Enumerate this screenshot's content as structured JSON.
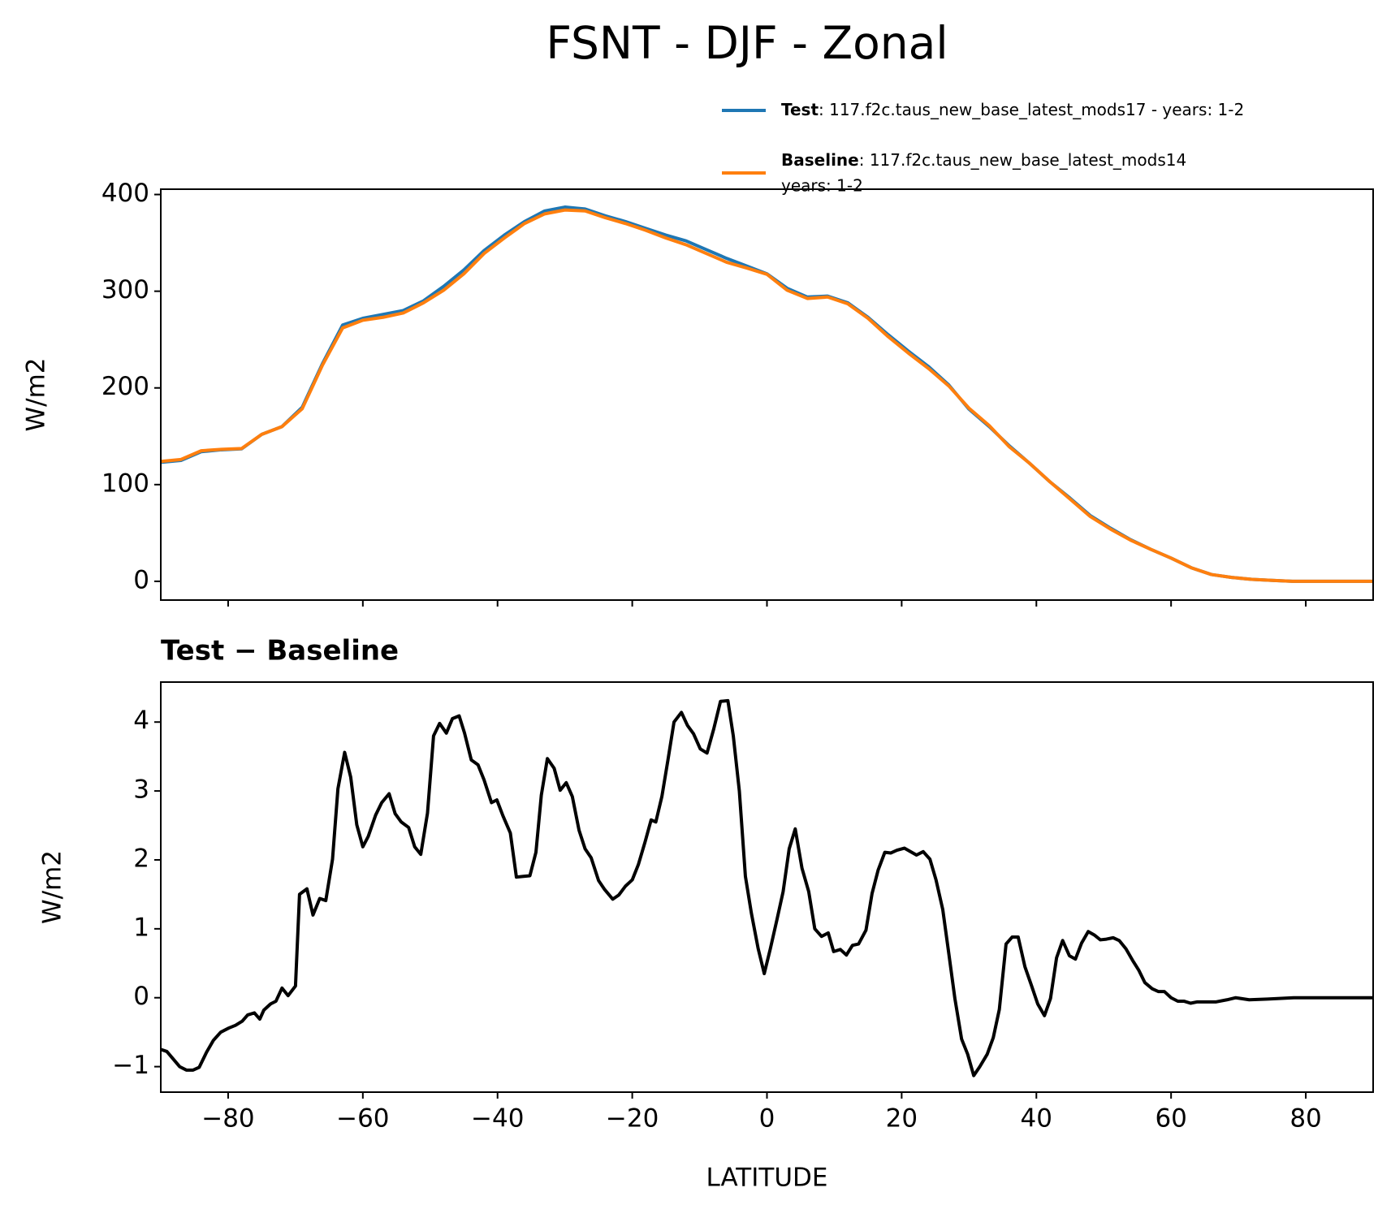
{
  "title": "FSNT - DJF - Zonal",
  "chart_data": [
    {
      "type": "line",
      "ylabel": "W/m2",
      "x": [
        -90,
        -87,
        -84,
        -81,
        -78,
        -75,
        -72,
        -69,
        -66,
        -63,
        -60,
        -57,
        -54,
        -51,
        -48,
        -45,
        -42,
        -39,
        -36,
        -33,
        -30,
        -27,
        -24,
        -21,
        -18,
        -15,
        -12,
        -9,
        -6,
        -3,
        0,
        3,
        6,
        9,
        12,
        15,
        18,
        21,
        24,
        27,
        30,
        33,
        36,
        39,
        42,
        45,
        48,
        51,
        54,
        57,
        60,
        63,
        66,
        69,
        72,
        75,
        78,
        81,
        84,
        87,
        90
      ],
      "series": [
        {
          "name": "Test",
          "description": [
            ": 117.f2c.taus_new_base_latest_mods17 - years: 1-2"
          ],
          "color": "#1f77b4",
          "values": [
            123,
            125,
            134,
            136,
            137,
            152,
            160,
            180,
            225,
            265,
            272,
            276,
            280,
            290,
            305,
            322,
            342,
            358,
            372,
            383,
            387,
            385,
            378,
            372,
            365,
            358,
            352,
            343,
            334,
            326,
            318,
            303,
            294,
            295,
            288,
            273,
            255,
            238,
            222,
            203,
            178,
            160,
            140,
            122,
            103,
            86,
            68,
            55,
            43,
            33,
            24,
            14,
            7,
            4,
            2,
            1,
            0,
            0,
            0,
            0,
            0
          ]
        },
        {
          "name": "Baseline",
          "description": [
            ": 117.f2c.taus_new_base_latest_mods14",
            "years: 1-2"
          ],
          "color": "#ff7f0e",
          "values": [
            124,
            126,
            135,
            136.5,
            137.3,
            152,
            160,
            178.5,
            223.5,
            262,
            270,
            273,
            277.5,
            288,
            301,
            318,
            339,
            355,
            370,
            380,
            384,
            383,
            376,
            370,
            363,
            355,
            348,
            339,
            330,
            324,
            317.5,
            301,
            292.5,
            294,
            287,
            272,
            253,
            236,
            220,
            202,
            179,
            161,
            139,
            122,
            103,
            85,
            67,
            54,
            42.5,
            33,
            24,
            14,
            7,
            4,
            2,
            1,
            0,
            0,
            0,
            0,
            0
          ]
        }
      ],
      "xlim": [
        -90,
        90
      ],
      "xticks": [
        -80,
        -60,
        -40,
        -20,
        0,
        20,
        40,
        60,
        80
      ],
      "show_xtick_labels": false,
      "ylim": [
        -19.4,
        405.5
      ],
      "yticks": [
        0,
        100,
        200,
        300,
        400
      ]
    },
    {
      "type": "line",
      "subtitle": "Test − Baseline",
      "ylabel": "W/m2",
      "xlabel": "LATITUDE",
      "x": [
        -90,
        -89.1,
        -87.2,
        -86.2,
        -85.2,
        -84.3,
        -83.2,
        -82.2,
        -81.1,
        -79.9,
        -78.9,
        -77.9,
        -77.1,
        -76.1,
        -75.3,
        -74.7,
        -73.7,
        -72.9,
        -72,
        -71.1,
        -70,
        -69.4,
        -68.3,
        -67.4,
        -66.4,
        -65.5,
        -64.5,
        -63.7,
        -62.7,
        -61.8,
        -60.9,
        -60,
        -59.2,
        -58.1,
        -57.2,
        -56.1,
        -55.2,
        -54.3,
        -53.2,
        -52.3,
        -51.4,
        -50.4,
        -49.5,
        -48.6,
        -47.6,
        -46.7,
        -45.7,
        -44.9,
        -43.9,
        -42.9,
        -42,
        -40.9,
        -40.1,
        -39.2,
        -38.1,
        -37.2,
        -36.3,
        -35.2,
        -34.3,
        -33.5,
        -32.6,
        -31.6,
        -30.7,
        -29.8,
        -28.9,
        -27.9,
        -27,
        -26.1,
        -25,
        -24.1,
        -22.9,
        -22,
        -21,
        -20,
        -19.1,
        -18.1,
        -17.2,
        -16.5,
        -15.6,
        -14.7,
        -13.8,
        -12.7,
        -11.8,
        -10.9,
        -9.9,
        -8.9,
        -7.9,
        -6.9,
        -5.8,
        -5,
        -4.1,
        -3.2,
        -2.3,
        -1.3,
        -0.4,
        0.5,
        1.5,
        2.4,
        3.3,
        4.2,
        5.2,
        6.2,
        7.1,
        8.1,
        9.1,
        9.9,
        10.9,
        11.8,
        12.7,
        13.6,
        14.7,
        15.6,
        16.5,
        17.5,
        18.4,
        19.3,
        20.4,
        21.3,
        22.2,
        23.2,
        24.2,
        25.1,
        26.1,
        27,
        27.9,
        28.9,
        29.8,
        30.7,
        31.6,
        32.7,
        33.6,
        34.5,
        35.5,
        36.4,
        37.3,
        38.3,
        39.3,
        40.2,
        41.2,
        42.1,
        43,
        43.9,
        44.9,
        45.8,
        46.7,
        47.7,
        48.6,
        49.5,
        50.4,
        51.4,
        52.3,
        53.3,
        54.3,
        55.2,
        56.1,
        57.2,
        58.1,
        59,
        60,
        61,
        61.9,
        62.9,
        63.9,
        65.3,
        66.7,
        68.3,
        69.6,
        71.6,
        74.3,
        78.2,
        84.8,
        90
      ],
      "series": [
        {
          "color": "#000000",
          "values": [
            -0.75,
            -0.78,
            -1,
            -1.05,
            -1.05,
            -1.01,
            -0.79,
            -0.62,
            -0.5,
            -0.44,
            -0.4,
            -0.34,
            -0.25,
            -0.22,
            -0.31,
            -0.18,
            -0.09,
            -0.05,
            0.14,
            0.03,
            0.17,
            1.5,
            1.58,
            1.2,
            1.44,
            1.41,
            2.01,
            3.03,
            3.56,
            3.2,
            2.51,
            2.19,
            2.34,
            2.65,
            2.83,
            2.96,
            2.67,
            2.55,
            2.47,
            2.19,
            2.08,
            2.68,
            3.8,
            3.98,
            3.84,
            4.05,
            4.09,
            3.84,
            3.45,
            3.38,
            3.16,
            2.83,
            2.87,
            2.64,
            2.39,
            1.75,
            1.76,
            1.77,
            2.11,
            2.94,
            3.47,
            3.33,
            3.01,
            3.12,
            2.92,
            2.43,
            2.16,
            2.03,
            1.7,
            1.57,
            1.43,
            1.49,
            1.62,
            1.71,
            1.93,
            2.26,
            2.58,
            2.55,
            2.92,
            3.45,
            4,
            4.14,
            3.95,
            3.83,
            3.61,
            3.55,
            3.9,
            4.3,
            4.31,
            3.8,
            3,
            1.76,
            1.22,
            0.71,
            0.35,
            0.71,
            1.14,
            1.54,
            2.16,
            2.45,
            1.88,
            1.54,
            1,
            0.89,
            0.94,
            0.67,
            0.7,
            0.62,
            0.76,
            0.78,
            0.98,
            1.51,
            1.85,
            2.11,
            2.1,
            2.14,
            2.17,
            2.12,
            2.07,
            2.12,
            2.01,
            1.71,
            1.28,
            0.64,
            -0.01,
            -0.6,
            -0.82,
            -1.13,
            -1,
            -0.82,
            -0.58,
            -0.17,
            0.78,
            0.88,
            0.88,
            0.45,
            0.17,
            -0.09,
            -0.26,
            -0.01,
            0.58,
            0.83,
            0.61,
            0.56,
            0.79,
            0.96,
            0.91,
            0.84,
            0.85,
            0.87,
            0.83,
            0.71,
            0.54,
            0.4,
            0.22,
            0.13,
            0.09,
            0.09,
            0,
            -0.05,
            -0.05,
            -0.08,
            -0.06,
            -0.06,
            -0.06,
            -0.03,
            0,
            -0.03,
            -0.02,
            0,
            0,
            0
          ]
        }
      ],
      "xlim": [
        -90,
        90
      ],
      "xticks": [
        {
          "value": -80,
          "label": "−80"
        },
        {
          "value": -60,
          "label": "−60"
        },
        {
          "value": -40,
          "label": "−40"
        },
        {
          "value": -20,
          "label": "−20"
        },
        0,
        20,
        40,
        60,
        80
      ],
      "show_xtick_labels": true,
      "ylim": [
        -1.37,
        4.58
      ],
      "yticks": [
        {
          "value": -1,
          "label": "−1"
        },
        0,
        1,
        2,
        3,
        4
      ]
    }
  ]
}
